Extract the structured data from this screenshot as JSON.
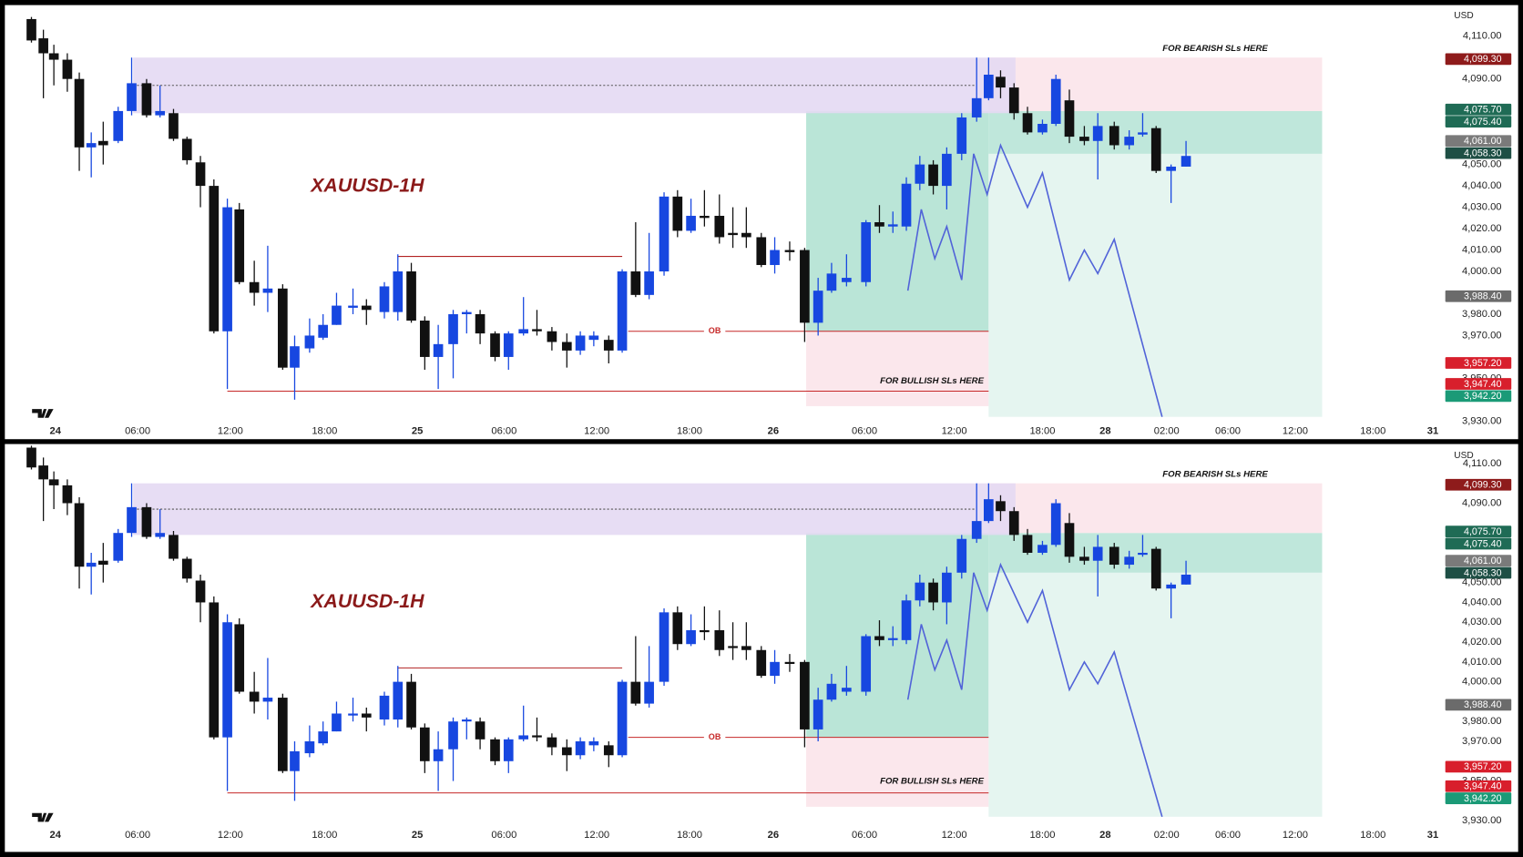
{
  "chart_data": {
    "type": "candlestick",
    "title": "XAUUSD-1H",
    "currency": "USD",
    "colors": {
      "up": "#1747e0",
      "down": "#111111"
    },
    "x": [
      -1.6,
      -0.8,
      -0.1,
      0.8,
      1.6,
      2.4,
      3.2,
      4.2,
      5.1,
      6.1,
      7.0,
      7.9,
      8.8,
      9.7,
      10.6,
      11.5,
      12.3,
      13.3,
      14.2,
      15.2,
      16.0,
      17.0,
      17.9,
      18.8,
      19.9,
      20.8,
      22.0,
      22.9,
      23.8,
      24.7,
      25.6,
      26.6,
      27.5,
      28.4,
      29.4,
      30.3,
      31.3,
      32.2,
      33.2,
      34.2,
      35.1,
      36.0,
      37.0,
      37.9,
      38.8,
      39.7,
      40.7,
      41.6,
      42.5,
      43.4,
      44.4,
      45.3,
      46.2,
      47.2,
      48.1,
      49.1,
      50.1,
      51.0,
      51.9,
      52.9,
      54.2,
      55.1,
      56.0,
      56.9,
      57.8,
      58.7,
      59.6,
      60.6,
      61.6,
      62.4,
      63.2,
      64.1,
      65.0,
      66.0,
      66.9,
      67.8,
      68.8,
      69.7,
      70.8,
      71.8,
      72.7,
      73.6,
      74.6,
      75.6
    ],
    "open": [
      4118,
      4109,
      4102,
      4099,
      4090,
      4058,
      4061,
      4061,
      4075,
      4088,
      4073,
      4074,
      4062,
      4051,
      4040,
      3972,
      4029,
      3995,
      3990,
      3992,
      3955,
      3964,
      3969,
      3975,
      3983,
      3984,
      3981,
      3981,
      4000,
      3977,
      3960,
      3966,
      3980,
      3980,
      3971,
      3960,
      3971,
      3973,
      3972,
      3967,
      3963,
      3968,
      3968,
      3963,
      4000,
      3989,
      4000,
      4035,
      4019,
      4026,
      4026,
      4018,
      4018,
      4016,
      4003,
      4010,
      4010,
      3976,
      3991,
      3995,
      3995,
      4023,
      4021,
      4021,
      4041,
      4050,
      4040,
      4055,
      4072,
      4081,
      4091,
      4086,
      4074,
      4065,
      4069,
      4080,
      4063,
      4061,
      4068,
      4059,
      4064,
      4067,
      4047,
      4049
    ],
    "high": [
      4119,
      4113,
      4106,
      4102,
      4093,
      4065,
      4070,
      4077,
      4100,
      4090,
      4087,
      4076,
      4063,
      4054,
      4043,
      4034,
      4032,
      4005,
      4012,
      3994,
      3970,
      3978,
      3980,
      3990,
      3992,
      3987,
      3995,
      4008,
      4004,
      3979,
      3975,
      3982,
      3982,
      3982,
      3972,
      3972,
      3988,
      3982,
      3974,
      3971,
      3972,
      3972,
      3970,
      4001,
      4023,
      4018,
      4037,
      4038,
      4034,
      4038,
      4036,
      4030,
      4030,
      4018,
      4016,
      4014,
      4011,
      3997,
      4004,
      4008,
      4024,
      4031,
      4028,
      4044,
      4054,
      4052,
      4058,
      4074,
      4100,
      4100,
      4094,
      4088,
      4077,
      4071,
      4092,
      4085,
      4068,
      4074,
      4070,
      4066,
      4074,
      4068,
      4050,
      4061
    ],
    "low": [
      4107,
      4081,
      4087,
      4084,
      4047,
      4044,
      4050,
      4060,
      4073,
      4072,
      4072,
      4061,
      4050,
      4030,
      3971,
      3945,
      3994,
      3984,
      3981,
      3954,
      3940,
      3962,
      3968,
      3975,
      3980,
      3975,
      3978,
      3977,
      3976,
      3954,
      3945,
      3950,
      3971,
      3966,
      3958,
      3954,
      3970,
      3970,
      3963,
      3955,
      3961,
      3965,
      3957,
      3962,
      3988,
      3987,
      3998,
      4016,
      4018,
      4021,
      4013,
      4011,
      4011,
      4002,
      3999,
      4005,
      3967,
      3970,
      3990,
      3993,
      3993,
      4018,
      4018,
      4019,
      4038,
      4036,
      4029,
      4052,
      4070,
      4080,
      4081,
      4071,
      4064,
      4064,
      4068,
      4060,
      4059,
      4043,
      4057,
      4057,
      4063,
      4046,
      4032,
      4049
    ],
    "close": [
      4108,
      4102,
      4099,
      4090,
      4058,
      4060,
      4059,
      4075,
      4088,
      4073,
      4075,
      4062,
      4052,
      4040,
      3972,
      4030,
      3995,
      3990,
      3992,
      3955,
      3965,
      3970,
      3975,
      3984,
      3984,
      3982,
      3993,
      4000,
      3977,
      3960,
      3966,
      3980,
      3981,
      3971,
      3960,
      3971,
      3973,
      3972,
      3967,
      3963,
      3970,
      3970,
      3963,
      4000,
      3989,
      4000,
      4035,
      4019,
      4026,
      4025,
      4016,
      4017,
      4016,
      4003,
      4010,
      4009,
      3976,
      3991,
      3999,
      3997,
      4023,
      4021,
      4022,
      4041,
      4050,
      4040,
      4055,
      4072,
      4081,
      4092,
      4086,
      4074,
      4065,
      4069,
      4090,
      4063,
      4061,
      4068,
      4059,
      4063,
      4065,
      4047,
      4049,
      4054
    ],
    "xlim": [
      -2.5,
      93
    ],
    "xticks": [
      {
        "value": 0,
        "label": "24"
      },
      {
        "value": 5.5,
        "label": "06:00"
      },
      {
        "value": 11.7,
        "label": "12:00"
      },
      {
        "value": 18,
        "label": "18:00"
      },
      {
        "value": 24.2,
        "label": "25"
      },
      {
        "value": 30,
        "label": "06:00"
      },
      {
        "value": 36.2,
        "label": "12:00"
      },
      {
        "value": 42.4,
        "label": "18:00"
      },
      {
        "value": 48,
        "label": "26"
      },
      {
        "value": 54.1,
        "label": "06:00"
      },
      {
        "value": 60.1,
        "label": "12:00"
      },
      {
        "value": 66,
        "label": "18:00"
      },
      {
        "value": 70.2,
        "label": "28"
      },
      {
        "value": 74.3,
        "label": "02:00"
      },
      {
        "value": 78.4,
        "label": "06:00"
      },
      {
        "value": 82.9,
        "label": "12:00"
      },
      {
        "value": 88.1,
        "label": "18:00"
      },
      {
        "value": 92.1,
        "label": "31"
      }
    ],
    "ylim": [
      3927,
      4120
    ],
    "yticks": [
      {
        "value": 4110,
        "label": "4,110.00"
      },
      {
        "value": 4090,
        "label": "4,090.00"
      },
      {
        "value": 4050,
        "label": "4,050.00"
      },
      {
        "value": 4040,
        "label": "4,040.00"
      },
      {
        "value": 4030,
        "label": "4,030.00"
      },
      {
        "value": 4020,
        "label": "4,020.00"
      },
      {
        "value": 4010,
        "label": "4,010.00"
      },
      {
        "value": 4000,
        "label": "4,000.00"
      },
      {
        "value": 3980,
        "label": "3,980.00"
      },
      {
        "value": 3970,
        "label": "3,970.00"
      },
      {
        "value": 3950,
        "label": "3,950.00"
      },
      {
        "value": 3930,
        "label": "3,930.00"
      }
    ],
    "grid": false,
    "price_labels": [
      {
        "value": 4099.3,
        "label": "4,099.30",
        "color": "#8e1b1b"
      },
      {
        "value": 4075.7,
        "label": "4,075.70",
        "color": "#1f6b55"
      },
      {
        "value": 4075.4,
        "label": "4,075.40",
        "color": "#1f6b55"
      },
      {
        "value": 4061,
        "label": "4,061.00",
        "color": "#7a7a7a"
      },
      {
        "value": 4058.3,
        "label": "4,058.30",
        "color": "#1e4f45"
      },
      {
        "value": 3988.4,
        "label": "3,988.40",
        "color": "#6b6b6b"
      },
      {
        "value": 3957.2,
        "label": "3,957.20",
        "color": "#d81f2c"
      },
      {
        "value": 3947.4,
        "label": "3,947.40",
        "color": "#d81f2c"
      },
      {
        "value": 3942.2,
        "label": "3,942.20",
        "color": "#1b9a77"
      }
    ],
    "zones": [
      {
        "x": [
          50.2,
          62.4
        ],
        "y": [
          3972,
          4075
        ],
        "color": "#b3e2d3"
      },
      {
        "x": [
          62.4,
          84.7
        ],
        "y": [
          3932,
          4055
        ],
        "color": "#e2f4ee"
      },
      {
        "x": [
          62.4,
          84.7
        ],
        "y": [
          4055,
          4075
        ],
        "color": "#b8e4d7"
      },
      {
        "x": [
          62.4,
          84.7
        ],
        "y": [
          4075,
          4100
        ],
        "color": "#fbe4ea",
        "label": "FOR  BEARISH SLs HERE",
        "label_pos": "top"
      },
      {
        "x": [
          50.2,
          62.4
        ],
        "y": [
          3937,
          3972
        ],
        "color": "#fbe4ea",
        "label": "FOR BULLISH SLs HERE",
        "label_pos": "bottom-right"
      },
      {
        "x": [
          5.2,
          64.2
        ],
        "y": [
          4074,
          4100
        ],
        "color": "#e4d9f3"
      }
    ],
    "levels": [
      {
        "x": [
          5.2,
          61.5
        ],
        "value": 4087,
        "color": "#555555",
        "style": "dotted"
      },
      {
        "x": [
          22.9,
          37.9
        ],
        "value": 4007,
        "color": "#b22222",
        "style": "solid"
      },
      {
        "x": [
          38.3,
          62.4
        ],
        "value": 3972,
        "color": "#c62828",
        "style": "solid",
        "label": "OB"
      },
      {
        "x": [
          11.5,
          62.4
        ],
        "value": 3944,
        "color": "#c62828",
        "style": "solid"
      }
    ],
    "projection": {
      "color": "#5163d8",
      "x": [
        57.0,
        57.9,
        58.8,
        59.6,
        60.6,
        61.4,
        62.3,
        63.2,
        65.0,
        66.0,
        67.8,
        68.8,
        69.7,
        70.8,
        74.0
      ],
      "values": [
        3991,
        4029,
        4006,
        4021,
        3996,
        4055,
        4036,
        4059,
        4030,
        4046,
        3996,
        4010,
        3999,
        4015,
        3932
      ]
    }
  }
}
